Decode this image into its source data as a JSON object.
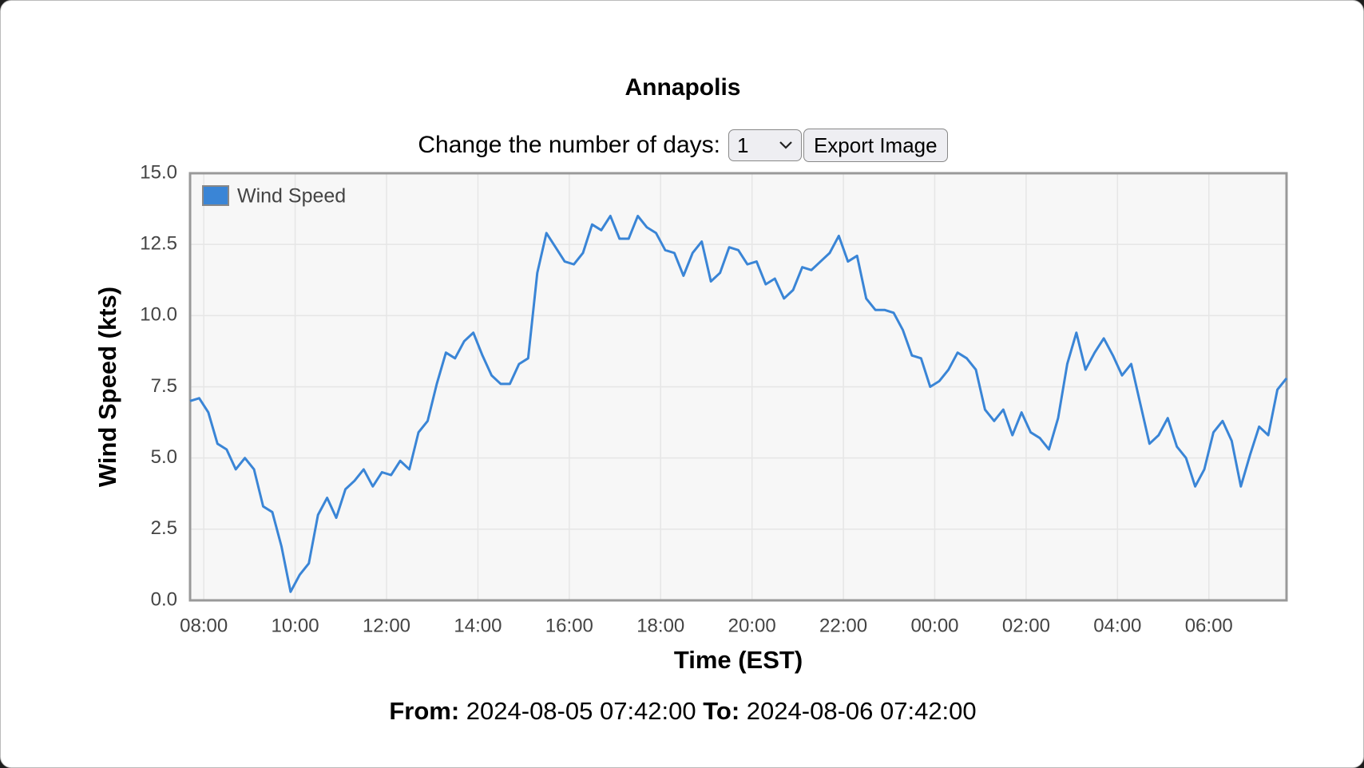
{
  "controls": {
    "days_label": "Change the number of days:",
    "days_value": "1",
    "export_button": "Export Image"
  },
  "range": {
    "from_label": "From:",
    "from": "2024-08-05 07:42:00",
    "to_label": "To:",
    "to": "2024-08-06 07:42:00"
  },
  "chart_data": {
    "type": "line",
    "title": "Annapolis",
    "x_label": "Time (EST)",
    "y_label": "Wind Speed (kts)",
    "x": [
      "07:42",
      "07:54",
      "08:06",
      "08:18",
      "08:30",
      "08:42",
      "08:54",
      "09:06",
      "09:18",
      "09:30",
      "09:42",
      "09:54",
      "10:06",
      "10:18",
      "10:30",
      "10:42",
      "10:54",
      "11:06",
      "11:18",
      "11:30",
      "11:42",
      "11:54",
      "12:06",
      "12:18",
      "12:30",
      "12:42",
      "12:54",
      "13:06",
      "13:18",
      "13:30",
      "13:42",
      "13:54",
      "14:06",
      "14:18",
      "14:30",
      "14:42",
      "14:54",
      "15:06",
      "15:18",
      "15:30",
      "15:42",
      "15:54",
      "16:06",
      "16:18",
      "16:30",
      "16:42",
      "16:54",
      "17:06",
      "17:18",
      "17:30",
      "17:42",
      "17:54",
      "18:06",
      "18:18",
      "18:30",
      "18:42",
      "18:54",
      "19:06",
      "19:18",
      "19:30",
      "19:42",
      "19:54",
      "20:06",
      "20:18",
      "20:30",
      "20:42",
      "20:54",
      "21:06",
      "21:18",
      "21:30",
      "21:42",
      "21:54",
      "22:06",
      "22:18",
      "22:30",
      "22:42",
      "22:54",
      "23:06",
      "23:18",
      "23:30",
      "23:42",
      "23:54",
      "00:06",
      "00:18",
      "00:30",
      "00:42",
      "00:54",
      "01:06",
      "01:18",
      "01:30",
      "01:42",
      "01:54",
      "02:06",
      "02:18",
      "02:30",
      "02:42",
      "02:54",
      "03:06",
      "03:18",
      "03:30",
      "03:42",
      "03:54",
      "04:06",
      "04:18",
      "04:30",
      "04:42",
      "04:54",
      "05:06",
      "05:18",
      "05:30",
      "05:42",
      "05:54",
      "06:06",
      "06:18",
      "06:30",
      "06:42",
      "06:54",
      "07:06",
      "07:18",
      "07:30",
      "07:42"
    ],
    "series": [
      {
        "name": "Wind Speed",
        "color": "#3a85d6",
        "values": [
          7.0,
          7.1,
          6.6,
          5.5,
          5.3,
          4.6,
          5.0,
          4.6,
          3.3,
          3.1,
          1.9,
          0.3,
          0.9,
          1.3,
          3.0,
          3.6,
          2.9,
          3.9,
          4.2,
          4.6,
          4.0,
          4.5,
          4.4,
          4.9,
          4.6,
          5.9,
          6.3,
          7.6,
          8.7,
          8.5,
          9.1,
          9.4,
          8.6,
          7.9,
          7.6,
          7.6,
          8.3,
          8.5,
          11.5,
          12.9,
          12.4,
          11.9,
          11.8,
          12.2,
          13.2,
          13.0,
          13.5,
          12.7,
          12.7,
          13.5,
          13.1,
          12.9,
          12.3,
          12.2,
          11.4,
          12.2,
          12.6,
          11.2,
          11.5,
          12.4,
          12.3,
          11.8,
          11.9,
          11.1,
          11.3,
          10.6,
          10.9,
          11.7,
          11.6,
          11.9,
          12.2,
          12.8,
          11.9,
          12.1,
          10.6,
          10.2,
          10.2,
          10.1,
          9.5,
          8.6,
          8.5,
          7.5,
          7.7,
          8.1,
          8.7,
          8.5,
          8.1,
          6.7,
          6.3,
          6.7,
          5.8,
          6.6,
          5.9,
          5.7,
          5.3,
          6.4,
          8.3,
          9.4,
          8.1,
          8.7,
          9.2,
          8.6,
          7.9,
          8.3,
          6.9,
          5.5,
          5.8,
          6.4,
          5.4,
          5.0,
          4.0,
          4.6,
          5.9,
          6.3,
          5.6,
          4.0,
          5.1,
          6.1,
          5.8,
          7.4,
          7.8
        ]
      }
    ],
    "xlim": [
      "07:42",
      "07:42"
    ],
    "xticks": [
      "08:00",
      "10:00",
      "12:00",
      "14:00",
      "16:00",
      "18:00",
      "20:00",
      "22:00",
      "00:00",
      "02:00",
      "04:00",
      "06:00"
    ],
    "ylim": [
      0,
      15
    ],
    "yticks": [
      {
        "value": 0,
        "label": "0.0"
      },
      2.5,
      {
        "value": 5,
        "label": "5.0"
      },
      7.5,
      {
        "value": 10,
        "label": "10.0"
      },
      12.5,
      {
        "value": 15,
        "label": "15.0"
      }
    ],
    "grid": true,
    "legend": "top-left"
  }
}
